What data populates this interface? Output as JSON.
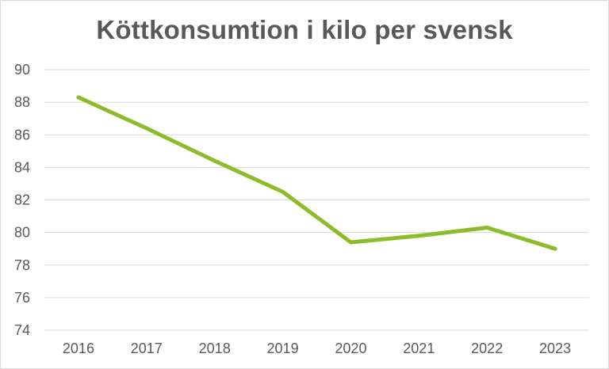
{
  "chart_data": {
    "type": "line",
    "title": "Köttkonsumtion i kilo per svensk",
    "categories": [
      "2016",
      "2017",
      "2018",
      "2019",
      "2020",
      "2021",
      "2022",
      "2023"
    ],
    "series": [
      {
        "values": [
          88.3,
          86.4,
          84.4,
          82.5,
          79.4,
          79.8,
          80.3,
          79.0
        ]
      }
    ],
    "ylim": [
      74,
      90
    ],
    "yticks": [
      74,
      76,
      78,
      80,
      82,
      84,
      86,
      88,
      90
    ],
    "grid": true,
    "line_color": "#8dbc2a",
    "grid_color": "#d9d9d9"
  }
}
